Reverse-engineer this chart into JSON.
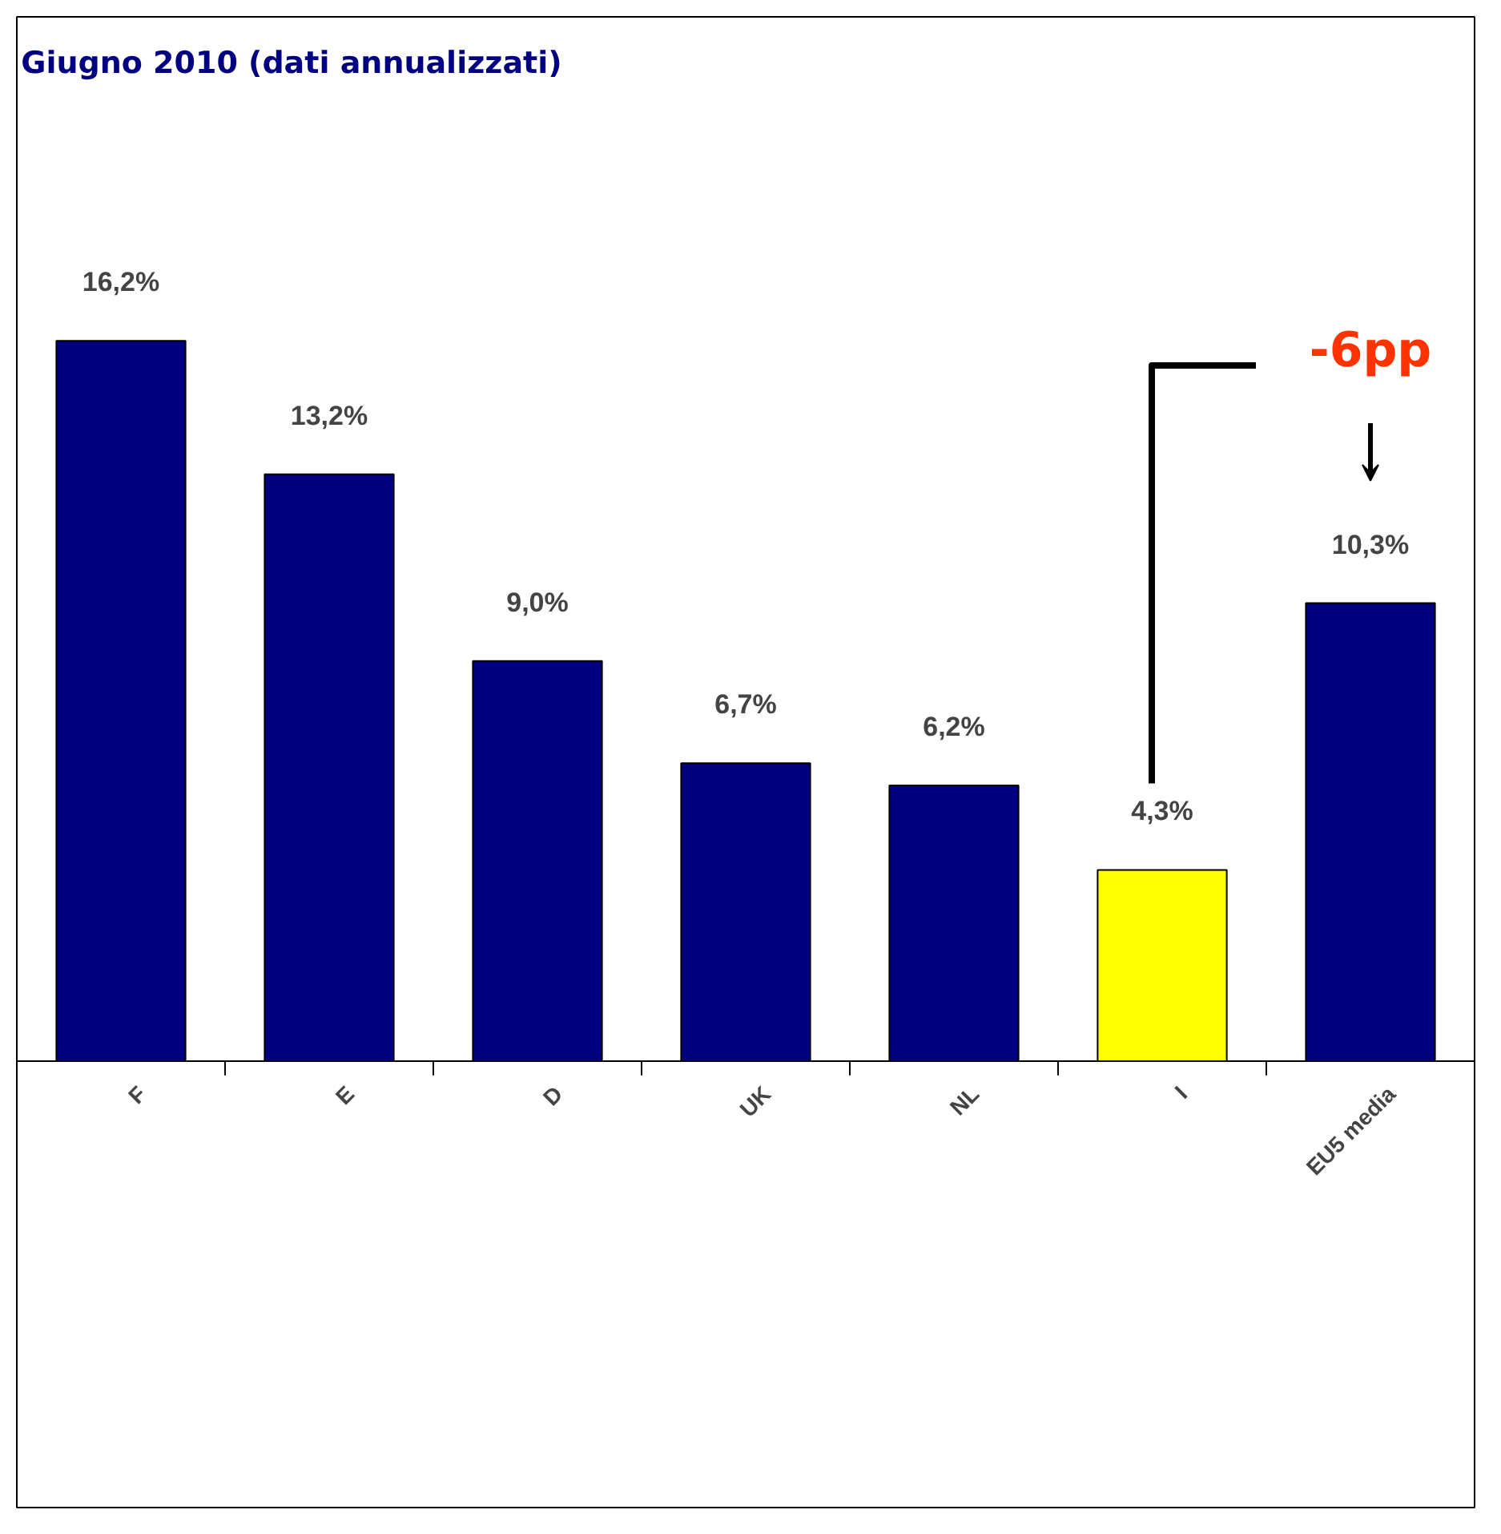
{
  "chart_data": {
    "type": "bar",
    "title": "Giugno 2010 (dati annualizzati)",
    "categories": [
      "F",
      "E",
      "D",
      "UK",
      "NL",
      "I",
      "EU5 media"
    ],
    "values": [
      16.2,
      13.2,
      9.0,
      6.7,
      6.2,
      4.3,
      10.3
    ],
    "colors": [
      "#000080",
      "#000080",
      "#000080",
      "#000080",
      "#000080",
      "#ffff00",
      "#000080"
    ],
    "value_labels": [
      "16,2%",
      "13,2%",
      "9,0%",
      "6,7%",
      "6,2%",
      "4,3%",
      "10,3%"
    ],
    "annotations": [
      "-6pp"
    ],
    "grid": false
  }
}
